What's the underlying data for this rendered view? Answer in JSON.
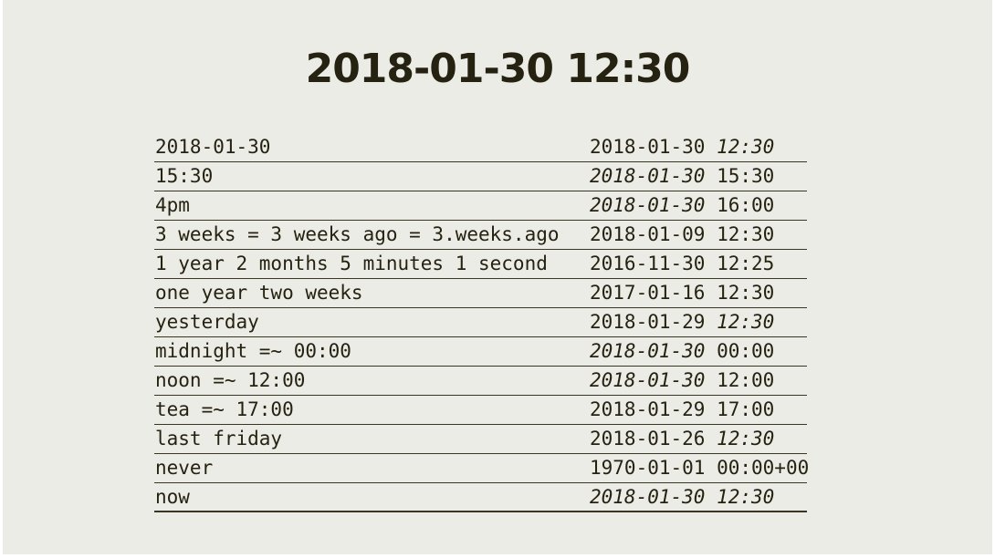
{
  "title": "2018-01-30 12:30",
  "rows": [
    {
      "expr": "2018-01-30",
      "date": "2018-01-30",
      "date_italic": false,
      "time": "12:30",
      "time_italic": true
    },
    {
      "expr": "15:30",
      "date": "2018-01-30",
      "date_italic": true,
      "time": "15:30",
      "time_italic": false
    },
    {
      "expr": "4pm",
      "date": "2018-01-30",
      "date_italic": true,
      "time": "16:00",
      "time_italic": false
    },
    {
      "expr": "3 weeks = 3 weeks ago = 3.weeks.ago",
      "date": "2018-01-09",
      "date_italic": false,
      "time": "12:30",
      "time_italic": false
    },
    {
      "expr": "1 year 2 months 5 minutes 1 second",
      "date": "2016-11-30",
      "date_italic": false,
      "time": "12:25",
      "time_italic": false
    },
    {
      "expr": "one year two weeks",
      "date": "2017-01-16",
      "date_italic": false,
      "time": "12:30",
      "time_italic": false
    },
    {
      "expr": "yesterday",
      "date": "2018-01-29",
      "date_italic": false,
      "time": "12:30",
      "time_italic": true
    },
    {
      "expr": "midnight =~ 00:00",
      "date": "2018-01-30",
      "date_italic": true,
      "time": "00:00",
      "time_italic": false
    },
    {
      "expr": "noon =~ 12:00",
      "date": "2018-01-30",
      "date_italic": true,
      "time": "12:00",
      "time_italic": false
    },
    {
      "expr": "tea =~ 17:00",
      "date": "2018-01-29",
      "date_italic": false,
      "time": "17:00",
      "time_italic": false
    },
    {
      "expr": "last friday",
      "date": "2018-01-26",
      "date_italic": false,
      "time": "12:30",
      "time_italic": true
    },
    {
      "expr": "never",
      "date": "1970-01-01",
      "date_italic": false,
      "time": "00:00+00",
      "time_italic": false
    },
    {
      "expr": "now",
      "date": "2018-01-30",
      "date_italic": true,
      "time": "12:30",
      "time_italic": true
    }
  ]
}
